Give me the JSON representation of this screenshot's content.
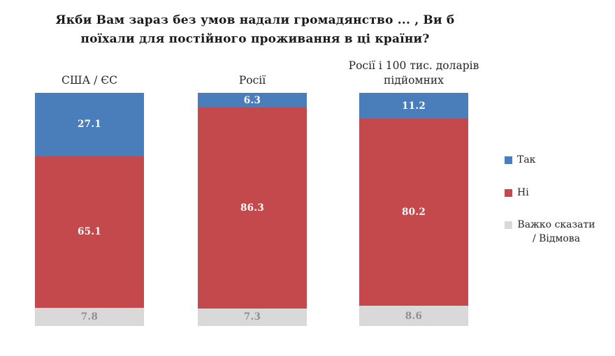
{
  "title": "Якби Вам зараз без умов надали громадянство ... , Ви б поїхали для постійного проживання в ці країни?",
  "chart_data": {
    "type": "bar",
    "subtype": "stacked-100-percent",
    "orientation": "vertical",
    "title": "Якби Вам зараз без умов надали громадянство ... , Ви б поїхали для постійного проживання в ці країни?",
    "categories": [
      "США / ЄС",
      "Росії",
      "Росії і 100 тис. доларів підйомних"
    ],
    "series": [
      {
        "name": "Так",
        "color": "#4a7ebb",
        "values": [
          27.1,
          6.3,
          11.2
        ]
      },
      {
        "name": "Ні",
        "color": "#c3494c",
        "values": [
          65.1,
          86.3,
          80.2
        ]
      },
      {
        "name": "Важко сказати / Відмова",
        "color": "#d9d9d9",
        "values": [
          7.8,
          7.3,
          8.6
        ]
      }
    ],
    "value_labels": true,
    "legend_position": "right",
    "grid": false,
    "axis": "none",
    "ylim": [
      0,
      100
    ]
  }
}
